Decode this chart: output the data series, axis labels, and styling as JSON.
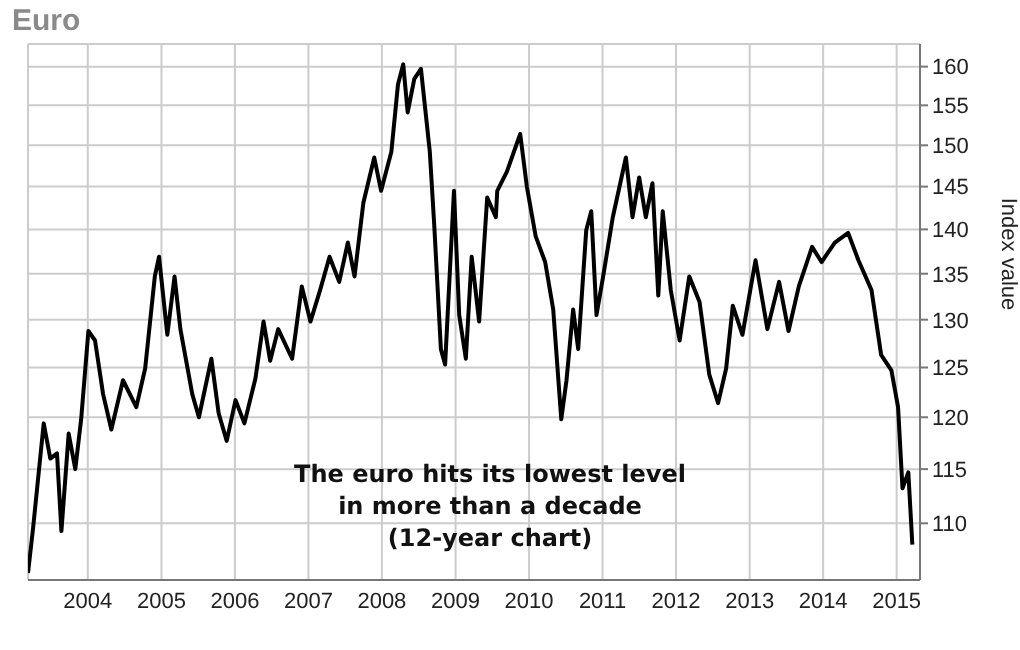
{
  "chart_data": {
    "type": "line",
    "title": "Euro",
    "ylabel": "Index value",
    "annotations": [
      "The euro hits its lowest level\nin more than a decade\n(12-year chart)"
    ],
    "x": [
      "2003-03-10",
      "2003-04-05",
      "2003-05-27",
      "2003-06-29",
      "2003-08-01",
      "2003-08-23",
      "2003-09-28",
      "2003-10-31",
      "2003-11-29",
      "2004-01-04",
      "2004-02-06",
      "2004-03-17",
      "2004-04-27",
      "2004-06-24",
      "2004-08-29",
      "2004-10-12",
      "2004-11-29",
      "2004-12-20",
      "2005-01-30",
      "2005-03-07",
      "2005-04-05",
      "2005-06-03",
      "2005-07-06",
      "2005-09-06",
      "2005-10-12",
      "2005-11-21",
      "2006-01-04",
      "2006-02-17",
      "2006-04-13",
      "2006-05-23",
      "2006-06-25",
      "2006-08-04",
      "2006-10-12",
      "2006-11-29",
      "2007-01-11",
      "2007-02-28",
      "2007-04-16",
      "2007-06-03",
      "2007-07-16",
      "2007-08-18",
      "2007-10-01",
      "2007-11-24",
      "2007-12-28",
      "2008-02-17",
      "2008-03-21",
      "2008-04-16",
      "2008-05-08",
      "2008-06-10",
      "2008-07-13",
      "2008-08-26",
      "2008-09-17",
      "2008-10-20",
      "2008-11-10",
      "2008-12-24",
      "2009-01-19",
      "2009-02-21",
      "2009-03-22",
      "2009-04-28",
      "2009-06-07",
      "2009-07-20",
      "2009-07-27",
      "2009-09-13",
      "2009-11-18",
      "2009-12-21",
      "2010-02-03",
      "2010-03-22",
      "2010-05-01",
      "2010-06-10",
      "2010-07-06",
      "2010-08-08",
      "2010-09-02",
      "2010-10-12",
      "2010-11-06",
      "2010-12-02",
      "2011-01-04",
      "2011-02-21",
      "2011-04-27",
      "2011-05-30",
      "2011-07-02",
      "2011-08-04",
      "2011-09-06",
      "2011-10-05",
      "2011-10-27",
      "2011-12-06",
      "2012-01-19",
      "2012-03-07",
      "2012-04-27",
      "2012-06-14",
      "2012-07-28",
      "2012-09-06",
      "2012-10-09",
      "2012-11-26",
      "2013-01-30",
      "2013-03-30",
      "2013-05-27",
      "2013-07-13",
      "2013-09-02",
      "2013-11-07",
      "2013-12-24",
      "2014-02-28",
      "2014-05-05",
      "2014-06-25",
      "2014-08-29",
      "2014-10-16",
      "2014-12-06",
      "2015-01-08",
      "2015-01-30",
      "2015-02-28",
      "2015-03-20"
    ],
    "series": [
      {
        "color": "#000000",
        "values": [
          105.6,
          109.7,
          119.4,
          116,
          116.5,
          109.3,
          118.4,
          115,
          119.8,
          128.8,
          127.8,
          122.3,
          118.8,
          123.7,
          121,
          124.9,
          134.7,
          136.9,
          128.4,
          134.7,
          129,
          122.3,
          120,
          125.9,
          120.4,
          117.7,
          121.7,
          119.4,
          123.9,
          129.8,
          125.7,
          129,
          125.9,
          133.6,
          129.8,
          133.2,
          136.9,
          134.1,
          138.5,
          134.7,
          143.1,
          148.5,
          144.5,
          149.2,
          157.7,
          160.3,
          154.1,
          158.4,
          159.7,
          149.2,
          140.5,
          126.9,
          125.3,
          144.5,
          130.5,
          125.9,
          136.9,
          129.8,
          143.7,
          141.4,
          144.5,
          146.8,
          151.4,
          145,
          139.2,
          136.3,
          131.1,
          119.8,
          123.7,
          131.1,
          126.9,
          139.9,
          142.1,
          130.5,
          134.7,
          141.4,
          148.5,
          141.4,
          146.1,
          141.4,
          145.4,
          132.6,
          142.1,
          133.2,
          127.8,
          134.7,
          131.9,
          124.3,
          121.4,
          124.9,
          131.5,
          128.4,
          136.5,
          129,
          134.1,
          128.8,
          133.6,
          138,
          136.3,
          138.5,
          139.6,
          136.5,
          133.2,
          126.3,
          124.7,
          121,
          113.2,
          114.7,
          108.1
        ]
      }
    ],
    "xlim": [
      "2003-03-10",
      "2015-04-27"
    ],
    "xticks": [
      "2004",
      "2005",
      "2006",
      "2007",
      "2008",
      "2009",
      "2010",
      "2011",
      "2012",
      "2013",
      "2014",
      "2015"
    ],
    "ylim": [
      105,
      163
    ],
    "yticks": [
      110,
      115,
      120,
      125,
      130,
      135,
      140,
      145,
      150,
      155,
      160
    ],
    "log": true,
    "grid": true,
    "legend": false,
    "marker": "none",
    "line_style": "solid"
  }
}
